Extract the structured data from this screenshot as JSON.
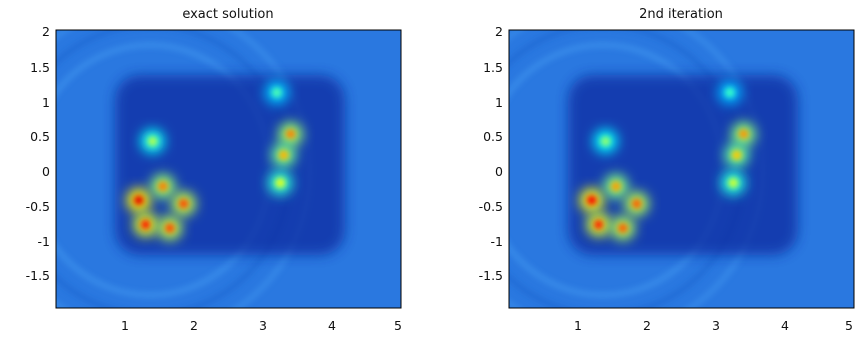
{
  "chart_data": [
    {
      "type": "heatmap",
      "title": "exact solution",
      "xlabel": "",
      "ylabel": "",
      "xlim": [
        0,
        5
      ],
      "ylim": [
        -2,
        2
      ],
      "xticks": [
        "1",
        "2",
        "3",
        "4",
        "5"
      ],
      "yticks": [
        "2",
        "1.5",
        "1",
        "0.5",
        "0",
        "-0.5",
        "-1",
        "-1.5"
      ],
      "colormap": "jet",
      "background_color": "#2a78e0",
      "grid": false,
      "hotspots": [
        {
          "x": 1.2,
          "y": -0.45,
          "level": 0.9
        },
        {
          "x": 1.55,
          "y": -0.25,
          "level": 0.75
        },
        {
          "x": 1.85,
          "y": -0.5,
          "level": 0.8
        },
        {
          "x": 1.3,
          "y": -0.8,
          "level": 0.85
        },
        {
          "x": 1.65,
          "y": -0.85,
          "level": 0.8
        },
        {
          "x": 3.4,
          "y": 0.5,
          "level": 0.75
        },
        {
          "x": 3.3,
          "y": 0.2,
          "level": 0.7
        },
        {
          "x": 3.25,
          "y": -0.2,
          "level": 0.6
        },
        {
          "x": 1.4,
          "y": 0.4,
          "level": 0.55
        },
        {
          "x": 3.2,
          "y": 1.1,
          "level": 0.45
        }
      ]
    },
    {
      "type": "heatmap",
      "title": "2nd iteration",
      "xlabel": "",
      "ylabel": "",
      "xlim": [
        0,
        5
      ],
      "ylim": [
        -2,
        2
      ],
      "xticks": [
        "1",
        "2",
        "3",
        "4",
        "5"
      ],
      "yticks": [
        "2",
        "1.5",
        "1",
        "0.5",
        "0",
        "-0.5",
        "-1",
        "-1.5"
      ],
      "colormap": "jet",
      "background_color": "#2a78e0",
      "grid": false,
      "hotspots": [
        {
          "x": 1.2,
          "y": -0.45,
          "level": 0.88
        },
        {
          "x": 1.55,
          "y": -0.25,
          "level": 0.72
        },
        {
          "x": 1.85,
          "y": -0.5,
          "level": 0.78
        },
        {
          "x": 1.3,
          "y": -0.8,
          "level": 0.84
        },
        {
          "x": 1.65,
          "y": -0.85,
          "level": 0.78
        },
        {
          "x": 3.4,
          "y": 0.5,
          "level": 0.73
        },
        {
          "x": 3.3,
          "y": 0.2,
          "level": 0.68
        },
        {
          "x": 3.25,
          "y": -0.2,
          "level": 0.58
        },
        {
          "x": 1.4,
          "y": 0.4,
          "level": 0.52
        },
        {
          "x": 3.2,
          "y": 1.1,
          "level": 0.43
        }
      ]
    }
  ]
}
